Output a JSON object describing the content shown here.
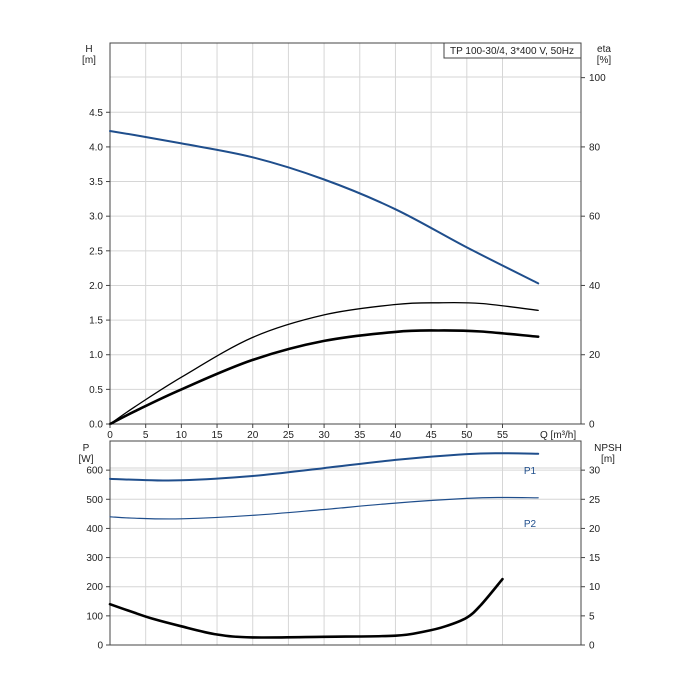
{
  "title": "TP 100-30/4, 3*400 V, 50Hz",
  "colors": {
    "head": "#1f4e8c",
    "power": "#1f4e8c",
    "eta": "#000000",
    "npsh": "#000000"
  },
  "chart_data": [
    {
      "type": "line",
      "title": "TP 100-30/4, 3*400 V, 50Hz",
      "xlabel": "Q [m³/h]",
      "x_ticks": [
        "0",
        "5",
        "10",
        "15",
        "20",
        "25",
        "30",
        "35",
        "40",
        "45",
        "50",
        "55"
      ],
      "xlim": [
        0,
        66
      ],
      "grid": true,
      "y_left": {
        "label_line1": "H",
        "label_line2": "[m]",
        "ticks": [
          "0.0",
          "0.5",
          "1.0",
          "1.5",
          "2.0",
          "2.5",
          "3.0",
          "3.5",
          "4.0",
          "4.5"
        ],
        "ylim": [
          0,
          5.5
        ]
      },
      "y_right": {
        "label_line1": "eta",
        "label_line2": "[%]",
        "ticks": [
          "0",
          "20",
          "40",
          "60",
          "80",
          "100"
        ],
        "ylim": [
          0,
          110
        ]
      },
      "series": [
        {
          "axis": "left",
          "color": "#1f4e8c",
          "width": 2,
          "x": [
            0,
            3.5,
            10,
            20,
            30,
            40,
            50,
            60
          ],
          "y": [
            4.23,
            4.17,
            4.05,
            3.85,
            3.53,
            3.1,
            2.55,
            2.03
          ]
        },
        {
          "axis": "right",
          "color": "#000000",
          "width": 1.3,
          "x": [
            0,
            3.5,
            10,
            20,
            30,
            40,
            46,
            52,
            60
          ],
          "y": [
            0,
            5,
            13.5,
            25,
            31.5,
            34.5,
            35,
            34.8,
            32.8
          ]
        },
        {
          "axis": "right",
          "color": "#000000",
          "width": 2.6,
          "x": [
            0,
            3.5,
            10,
            20,
            30,
            40,
            46,
            52,
            60
          ],
          "y": [
            0,
            3.7,
            10,
            18.5,
            24,
            26.6,
            27,
            26.7,
            25.2
          ]
        }
      ]
    },
    {
      "type": "line",
      "title": "",
      "xlim": [
        0,
        66
      ],
      "grid": true,
      "y_left": {
        "label_line1": "P",
        "label_line2": "[W]",
        "ticks": [
          "0",
          "100",
          "200",
          "300",
          "400",
          "500",
          "600"
        ],
        "ylim": [
          0,
          700
        ]
      },
      "y_right": {
        "label_line1": "NPSH",
        "label_line2": "[m]",
        "ticks": [
          "0",
          "5",
          "10",
          "15",
          "20",
          "25",
          "30"
        ],
        "ylim": [
          0,
          35
        ]
      },
      "series": [
        {
          "name": "P1",
          "axis": "left",
          "color": "#1f4e8c",
          "width": 2,
          "x": [
            0,
            3.5,
            10,
            20,
            30,
            40,
            50,
            55,
            60
          ],
          "y": [
            570,
            567,
            565,
            580,
            607,
            635,
            655,
            658,
            656
          ]
        },
        {
          "name": "P2",
          "axis": "left",
          "color": "#1f4e8c",
          "width": 1.2,
          "x": [
            0,
            3.5,
            10,
            20,
            30,
            40,
            50,
            55,
            60
          ],
          "y": [
            440,
            435,
            433,
            445,
            465,
            487,
            503,
            506,
            505
          ]
        },
        {
          "axis": "right",
          "color": "#000000",
          "width": 2.6,
          "x": [
            0,
            3.5,
            6,
            10,
            15,
            20,
            30,
            40,
            44,
            47,
            50,
            52,
            55
          ],
          "y": [
            7,
            5.5,
            4.5,
            3.2,
            1.8,
            1.3,
            1.4,
            1.6,
            2.3,
            3.2,
            4.7,
            6.9,
            11.3
          ]
        }
      ]
    }
  ]
}
